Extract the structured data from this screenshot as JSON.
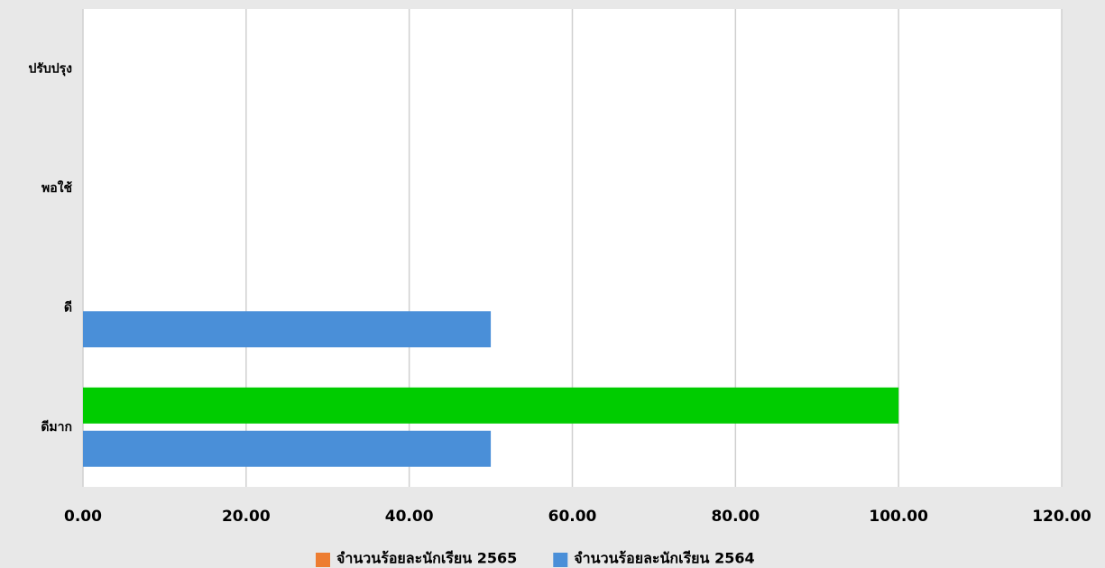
{
  "chart_data": {
    "type": "hbar",
    "categories": [
      "ปรับปรุง",
      "พอใช้",
      "ดี",
      "ดีมาก"
    ],
    "series": [
      {
        "name": "จำนวนร้อยละนักเรียน 2565",
        "color": "#ed7d31",
        "point_colors": [
          "#00cc00",
          "#00cc00",
          "#00cc00",
          "#00cc00"
        ],
        "values": [
          0,
          0,
          0,
          100
        ]
      },
      {
        "name": "จำนวนร้อยละนักเรียน 2564",
        "color": "#4a8fd8",
        "values": [
          0,
          0,
          50,
          50
        ]
      }
    ],
    "xlim": [
      0,
      120
    ],
    "xticks": [
      {
        "value": 0,
        "label": "0.00"
      },
      {
        "value": 20,
        "label": "20.00"
      },
      {
        "value": 40,
        "label": "40.00"
      },
      {
        "value": 60,
        "label": "60.00"
      },
      {
        "value": 80,
        "label": "80.00"
      },
      {
        "value": 100,
        "label": "100.00"
      },
      {
        "value": 120,
        "label": "120.00"
      }
    ],
    "grid": true,
    "legend": "bottom"
  }
}
